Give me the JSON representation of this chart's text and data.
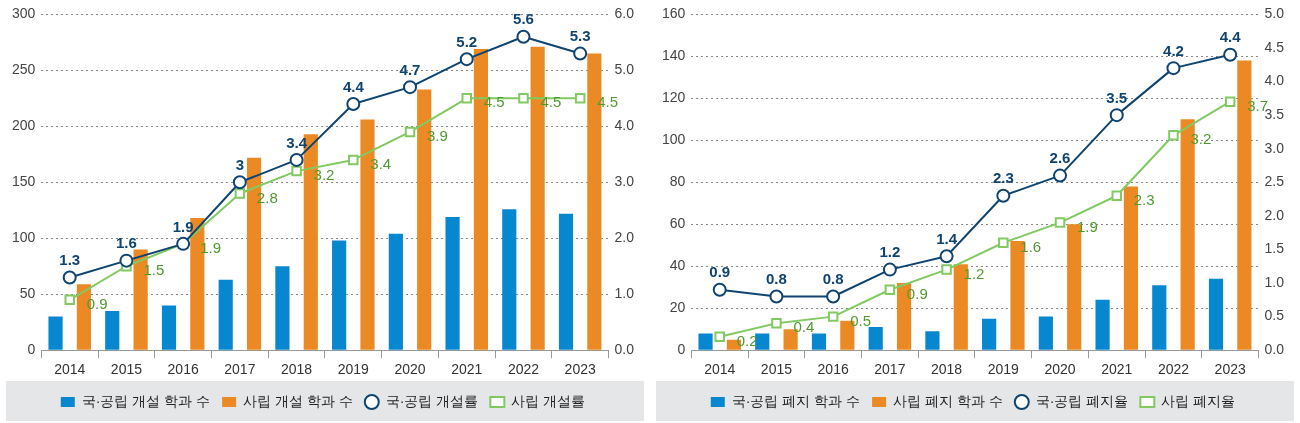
{
  "chart_data": [
    {
      "type": "bar",
      "categories": [
        "2014",
        "2015",
        "2016",
        "2017",
        "2018",
        "2019",
        "2020",
        "2021",
        "2022",
        "2023"
      ],
      "series": [
        {
          "name": "국·공립 개설 학과 수",
          "color": "#0787d0",
          "values": [
            30,
            35,
            40,
            63,
            75,
            98,
            104,
            119,
            126,
            122
          ]
        },
        {
          "name": "사립 개설 학과 수",
          "color": "#eb8a24",
          "values": [
            59,
            90,
            118,
            172,
            193,
            206,
            233,
            269,
            271,
            265
          ]
        },
        {
          "name": "국·공립 개설률",
          "type": "line",
          "axis": "y2",
          "marker": "circle",
          "color": "#0f4470",
          "values": [
            1.3,
            1.6,
            1.9,
            3.0,
            3.4,
            4.4,
            4.7,
            5.2,
            5.6,
            5.3
          ],
          "value_labels": [
            "1.3",
            "1.6",
            "1.9",
            "3",
            "3.4",
            "4.4",
            "4.7",
            "5.2",
            "5.6",
            "5.3"
          ]
        },
        {
          "name": "사립 개설률",
          "type": "line",
          "axis": "y2",
          "marker": "square",
          "color": "#82c962",
          "values": [
            0.9,
            1.5,
            1.9,
            2.8,
            3.2,
            3.4,
            3.9,
            4.5,
            4.5,
            4.5
          ],
          "value_labels": [
            "0.9",
            "1.5",
            "1.9",
            "2.8",
            "3.2",
            "3.4",
            "3.9",
            "4.5",
            "4.5",
            "4.5"
          ]
        }
      ],
      "ylim": [
        0,
        300
      ],
      "yticks": [
        0,
        50,
        100,
        150,
        200,
        250,
        300
      ],
      "y2lim": [
        0,
        6
      ],
      "y2ticks": [
        {
          "value": 0,
          "label": "0.0"
        },
        {
          "value": 1,
          "label": "1.0"
        },
        {
          "value": 2,
          "label": "2.0"
        },
        {
          "value": 3,
          "label": "3.0"
        },
        {
          "value": 4,
          "label": "4.0"
        },
        {
          "value": 5,
          "label": "5.0"
        },
        {
          "value": 6,
          "label": "6.0"
        }
      ],
      "grid": "y",
      "legend": "bottom"
    },
    {
      "type": "bar",
      "categories": [
        "2014",
        "2015",
        "2016",
        "2017",
        "2018",
        "2019",
        "2020",
        "2021",
        "2022",
        "2023"
      ],
      "series": [
        {
          "name": "국·공립 폐지 학과 수",
          "color": "#0787d0",
          "values": [
            8,
            8,
            8,
            11,
            9,
            15,
            16,
            24,
            31,
            34
          ]
        },
        {
          "name": "사립 폐지 학과 수",
          "color": "#eb8a24",
          "values": [
            5,
            10,
            14,
            32,
            41,
            52,
            60,
            78,
            110,
            138
          ]
        },
        {
          "name": "국·공립 폐지율",
          "type": "line",
          "axis": "y2",
          "marker": "circle",
          "color": "#0f4470",
          "values": [
            0.9,
            0.8,
            0.8,
            1.2,
            1.4,
            2.3,
            2.6,
            3.5,
            4.2,
            4.4
          ],
          "value_labels": [
            "0.9",
            "0.8",
            "0.8",
            "1.2",
            "1.4",
            "2.3",
            "2.6",
            "3.5",
            "4.2",
            "4.4"
          ]
        },
        {
          "name": "사립 폐지율",
          "type": "line",
          "axis": "y2",
          "marker": "square",
          "color": "#82c962",
          "values": [
            0.2,
            0.4,
            0.5,
            0.9,
            1.2,
            1.6,
            1.9,
            2.3,
            3.2,
            3.7
          ],
          "value_labels": [
            "0.2",
            "0.4",
            "0.5",
            "0.9",
            "1.2",
            "1.6",
            "1.9",
            "2.3",
            "3.2",
            "3.7"
          ]
        }
      ],
      "ylim": [
        0,
        160
      ],
      "yticks": [
        0,
        20,
        40,
        60,
        80,
        100,
        120,
        140,
        160
      ],
      "y2lim": [
        0,
        5
      ],
      "y2ticks": [
        {
          "value": 0,
          "label": "0.0"
        },
        {
          "value": 0.5,
          "label": "0.5"
        },
        {
          "value": 1,
          "label": "1.0"
        },
        {
          "value": 1.5,
          "label": "1.5"
        },
        {
          "value": 2,
          "label": "2.0"
        },
        {
          "value": 2.5,
          "label": "2.5"
        },
        {
          "value": 3,
          "label": "3.0"
        },
        {
          "value": 3.5,
          "label": "3.5"
        },
        {
          "value": 4,
          "label": "4.0"
        },
        {
          "value": 4.5,
          "label": "4.5"
        },
        {
          "value": 5,
          "label": "5.0"
        }
      ],
      "grid": "y",
      "legend": "bottom"
    }
  ]
}
